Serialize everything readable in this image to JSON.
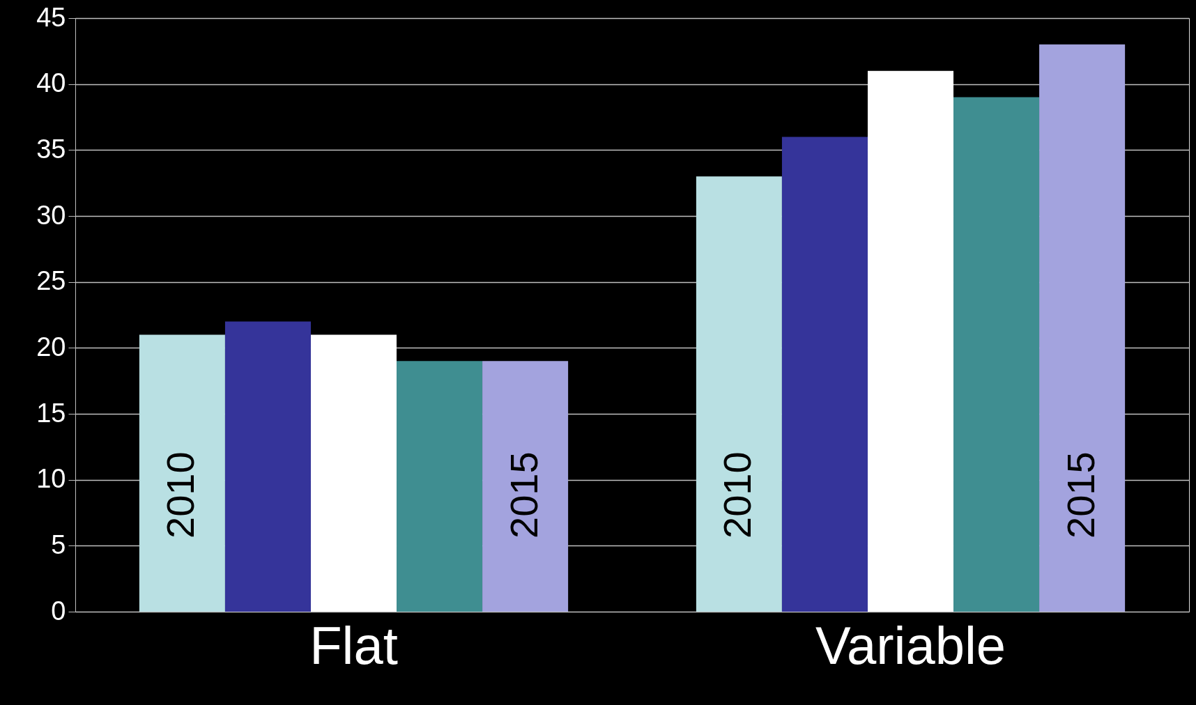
{
  "chart_data": {
    "type": "bar",
    "categories": [
      "Flat",
      "Variable"
    ],
    "series": [
      {
        "name": "2010",
        "color": "#b9e0e3",
        "values": [
          21,
          33
        ]
      },
      {
        "color": "#35349a",
        "values": [
          22,
          36
        ]
      },
      {
        "color": "#ffffff",
        "values": [
          21,
          41
        ]
      },
      {
        "color": "#3f8e91",
        "values": [
          19,
          39
        ]
      },
      {
        "name": "2015",
        "color": "#a3a3de",
        "values": [
          19,
          43
        ]
      }
    ],
    "ylim": [
      0,
      45
    ],
    "yticks": [
      0,
      5,
      10,
      15,
      20,
      25,
      30,
      35,
      40,
      45
    ],
    "grid": "y",
    "legend": false
  }
}
